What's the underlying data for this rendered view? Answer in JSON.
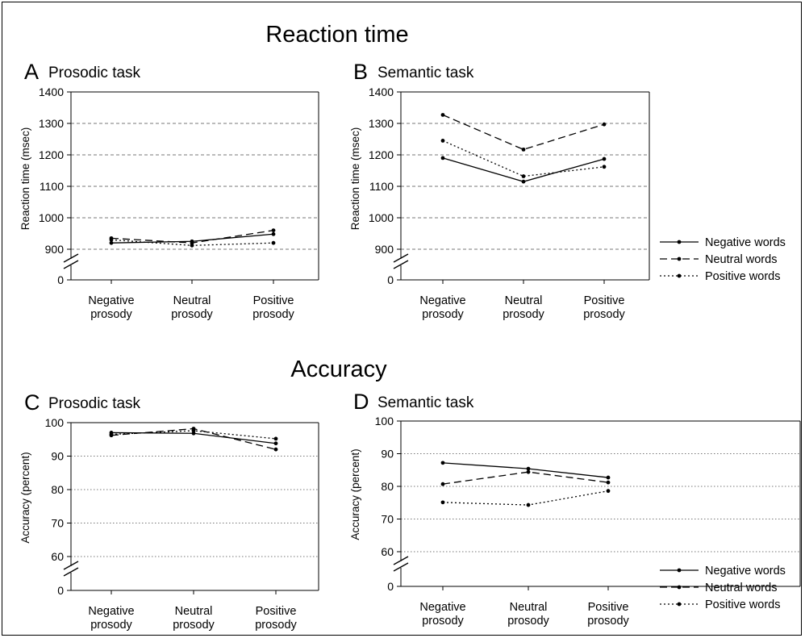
{
  "sections": [
    {
      "title": "Reaction time"
    },
    {
      "title": "Accuracy"
    }
  ],
  "legend": {
    "entries": [
      "Negative words",
      "Neutral words",
      "Positive words"
    ]
  },
  "chart_data": [
    {
      "type": "line",
      "letter": "A",
      "title": "Prosodic task",
      "ylabel": "Reaction time (msec)",
      "categories": [
        "Negative\nprosody",
        "Neutral\nprosody",
        "Positive\nprosody"
      ],
      "yticks": [
        900,
        1000,
        1100,
        1200,
        1300,
        1400
      ],
      "ylim": [
        900,
        1400
      ],
      "axis_break": true,
      "zero_label": "0",
      "grid": "dashed",
      "series": [
        {
          "name": "Negative words",
          "style": "solid",
          "values": [
            920,
            925,
            948
          ]
        },
        {
          "name": "Neutral words",
          "style": "dashed",
          "values": [
            935,
            920,
            960
          ]
        },
        {
          "name": "Positive words",
          "style": "dotted",
          "values": [
            930,
            912,
            920
          ]
        }
      ]
    },
    {
      "type": "line",
      "letter": "B",
      "title": "Semantic task",
      "ylabel": "Reaction time (msec)",
      "categories": [
        "Negative\nprosody",
        "Neutral\nprosody",
        "Positive\nprosody"
      ],
      "yticks": [
        900,
        1000,
        1100,
        1200,
        1300,
        1400
      ],
      "ylim": [
        900,
        1400
      ],
      "axis_break": true,
      "zero_label": "0",
      "grid": "dashed",
      "series": [
        {
          "name": "Negative words",
          "style": "solid",
          "values": [
            1190,
            1115,
            1187
          ]
        },
        {
          "name": "Neutral words",
          "style": "dashed",
          "values": [
            1327,
            1217,
            1297
          ]
        },
        {
          "name": "Positive words",
          "style": "dotted",
          "values": [
            1245,
            1132,
            1162
          ]
        }
      ]
    },
    {
      "type": "line",
      "letter": "C",
      "title": "Prosodic task",
      "ylabel": "Accuracy (percent)",
      "categories": [
        "Negative\nprosody",
        "Neutral\nprosody",
        "Positive\nprosody"
      ],
      "yticks": [
        60,
        70,
        80,
        90,
        100
      ],
      "ylim": [
        60,
        100
      ],
      "axis_break": true,
      "zero_label": "0",
      "grid": "dotted",
      "series": [
        {
          "name": "Negative words",
          "style": "solid",
          "values": [
            97.0,
            96.8,
            93.8
          ]
        },
        {
          "name": "Neutral words",
          "style": "dashed",
          "values": [
            96.2,
            98.2,
            92.0
          ]
        },
        {
          "name": "Positive words",
          "style": "dotted",
          "values": [
            96.5,
            97.6,
            95.2
          ]
        }
      ]
    },
    {
      "type": "line",
      "letter": "D",
      "title": "Semantic task",
      "ylabel": "Accuracy (percent)",
      "categories": [
        "Negative\nprosody",
        "Neutral\nprosody",
        "Positive\nprosody"
      ],
      "yticks": [
        60,
        70,
        80,
        90,
        100
      ],
      "ylim": [
        60,
        100
      ],
      "axis_break": true,
      "zero_label": "0",
      "grid": "dotted",
      "series": [
        {
          "name": "Negative words",
          "style": "solid",
          "values": [
            87.2,
            85.4,
            82.7
          ]
        },
        {
          "name": "Neutral words",
          "style": "dashed",
          "values": [
            80.7,
            84.4,
            81.2
          ]
        },
        {
          "name": "Positive words",
          "style": "dotted",
          "values": [
            75.1,
            74.3,
            78.6
          ]
        }
      ]
    }
  ]
}
